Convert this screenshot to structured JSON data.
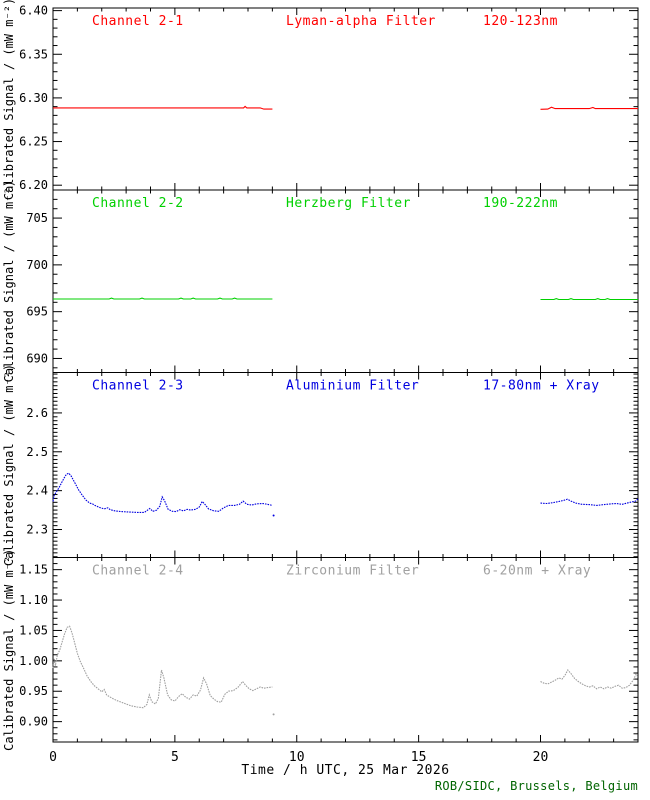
{
  "chart_data": {
    "type": "line",
    "xlabel": "Time / h UTC, 25 Mar 2026",
    "footer": "ROB/SIDC, Brussels, Belgium",
    "ylabel": "Calibrated Signal / (mW m⁻²)",
    "xlim": [
      0,
      24
    ],
    "xticks": [
      0,
      5,
      10,
      15,
      20
    ],
    "xtick_labels": [
      "0",
      "5",
      "10",
      "15",
      "20"
    ],
    "x_minor_step": 1,
    "grid": false,
    "legend": "none",
    "panels": [
      {
        "channel": "Channel 2-1",
        "filter": "Lyman-alpha Filter",
        "range": "120-123nm",
        "color": "#ff0000",
        "line_style": "solid",
        "ylim": [
          6.1945,
          6.403
        ],
        "yticks": [
          "6.20",
          "6.25",
          "6.30",
          "6.35",
          "6.40"
        ],
        "y_minor_step": 0.01,
        "segments": [
          [
            [
              0,
              6.2885
            ],
            [
              1,
              6.2885
            ],
            [
              2,
              6.2885
            ],
            [
              3,
              6.2885
            ],
            [
              4,
              6.2885
            ],
            [
              5,
              6.2885
            ],
            [
              6,
              6.2885
            ],
            [
              7,
              6.2885
            ],
            [
              7.7,
              6.2885
            ],
            [
              7.82,
              6.2885
            ],
            [
              7.88,
              6.2903
            ],
            [
              7.95,
              6.2885
            ],
            [
              8.5,
              6.2885
            ],
            [
              8.65,
              6.2872
            ],
            [
              9.0,
              6.2872
            ]
          ],
          [
            [
              20.0,
              6.287
            ],
            [
              20.3,
              6.2872
            ],
            [
              20.45,
              6.2893
            ],
            [
              20.6,
              6.2878
            ],
            [
              21.2,
              6.2878
            ],
            [
              22.0,
              6.2878
            ],
            [
              22.15,
              6.289
            ],
            [
              22.25,
              6.2878
            ],
            [
              23.0,
              6.2878
            ],
            [
              24,
              6.2878
            ]
          ]
        ],
        "outliers": []
      },
      {
        "channel": "Channel 2-2",
        "filter": "Herzberg Filter",
        "range": "190-222nm",
        "color": "#00d000",
        "line_style": "solid",
        "ylim": [
          688.5,
          708.0
        ],
        "yticks": [
          "690",
          "695",
          "700",
          "705"
        ],
        "y_minor_step": 1,
        "segments": [
          [
            [
              0,
              696.35
            ],
            [
              2.3,
              696.35
            ],
            [
              2.4,
              696.45
            ],
            [
              2.5,
              696.35
            ],
            [
              3.55,
              696.35
            ],
            [
              3.65,
              696.45
            ],
            [
              3.75,
              696.35
            ],
            [
              5.15,
              696.35
            ],
            [
              5.25,
              696.45
            ],
            [
              5.35,
              696.35
            ],
            [
              5.65,
              696.35
            ],
            [
              5.75,
              696.45
            ],
            [
              5.85,
              696.35
            ],
            [
              6.75,
              696.35
            ],
            [
              6.85,
              696.45
            ],
            [
              6.95,
              696.35
            ],
            [
              7.35,
              696.35
            ],
            [
              7.45,
              696.45
            ],
            [
              7.55,
              696.35
            ],
            [
              9.0,
              696.35
            ]
          ],
          [
            [
              20.0,
              696.3
            ],
            [
              20.55,
              696.3
            ],
            [
              20.65,
              696.4
            ],
            [
              20.75,
              696.3
            ],
            [
              21.15,
              696.3
            ],
            [
              21.25,
              696.4
            ],
            [
              21.35,
              696.3
            ],
            [
              22.25,
              696.3
            ],
            [
              22.35,
              696.4
            ],
            [
              22.45,
              696.3
            ],
            [
              22.65,
              696.3
            ],
            [
              22.75,
              696.4
            ],
            [
              22.85,
              696.3
            ],
            [
              24,
              696.3
            ]
          ]
        ],
        "outliers": []
      },
      {
        "channel": "Channel 2-3",
        "filter": "Aluminium Filter",
        "range": "17-80nm + Xray",
        "color": "#0000e0",
        "line_style": "dotted",
        "ylim": [
          2.228,
          2.704
        ],
        "yticks": [
          "2.3",
          "2.4",
          "2.5",
          "2.6"
        ],
        "y_minor_step": 0.01,
        "segments": [
          [
            [
              0,
              2.372
            ],
            [
              0.05,
              2.388
            ],
            [
              0.15,
              2.398
            ],
            [
              0.25,
              2.408
            ],
            [
              0.35,
              2.42
            ],
            [
              0.45,
              2.432
            ],
            [
              0.55,
              2.442
            ],
            [
              0.65,
              2.445
            ],
            [
              0.75,
              2.437
            ],
            [
              0.9,
              2.42
            ],
            [
              1.05,
              2.402
            ],
            [
              1.2,
              2.388
            ],
            [
              1.35,
              2.376
            ],
            [
              1.5,
              2.368
            ],
            [
              1.62,
              2.366
            ],
            [
              1.72,
              2.362
            ],
            [
              1.9,
              2.357
            ],
            [
              2.1,
              2.353
            ],
            [
              2.25,
              2.356
            ],
            [
              2.35,
              2.351
            ],
            [
              2.55,
              2.348
            ],
            [
              2.8,
              2.346
            ],
            [
              3.1,
              2.345
            ],
            [
              3.45,
              2.344
            ],
            [
              3.75,
              2.344
            ],
            [
              3.88,
              2.35
            ],
            [
              3.97,
              2.354
            ],
            [
              4.1,
              2.347
            ],
            [
              4.25,
              2.35
            ],
            [
              4.38,
              2.36
            ],
            [
              4.48,
              2.384
            ],
            [
              4.58,
              2.374
            ],
            [
              4.72,
              2.352
            ],
            [
              4.9,
              2.347
            ],
            [
              5.05,
              2.346
            ],
            [
              5.2,
              2.351
            ],
            [
              5.35,
              2.348
            ],
            [
              5.5,
              2.352
            ],
            [
              5.65,
              2.35
            ],
            [
              5.85,
              2.352
            ],
            [
              6.0,
              2.358
            ],
            [
              6.12,
              2.372
            ],
            [
              6.22,
              2.366
            ],
            [
              6.38,
              2.353
            ],
            [
              6.6,
              2.348
            ],
            [
              6.8,
              2.347
            ],
            [
              7.0,
              2.356
            ],
            [
              7.2,
              2.362
            ],
            [
              7.45,
              2.362
            ],
            [
              7.65,
              2.365
            ],
            [
              7.8,
              2.373
            ],
            [
              7.95,
              2.365
            ],
            [
              8.15,
              2.363
            ],
            [
              8.35,
              2.366
            ],
            [
              8.6,
              2.367
            ],
            [
              8.8,
              2.365
            ],
            [
              9.0,
              2.362
            ]
          ],
          [
            [
              20.0,
              2.368
            ],
            [
              20.25,
              2.367
            ],
            [
              20.5,
              2.369
            ],
            [
              20.75,
              2.372
            ],
            [
              20.95,
              2.375
            ],
            [
              21.1,
              2.378
            ],
            [
              21.25,
              2.373
            ],
            [
              21.45,
              2.368
            ],
            [
              21.7,
              2.365
            ],
            [
              22.0,
              2.364
            ],
            [
              22.3,
              2.362
            ],
            [
              22.6,
              2.364
            ],
            [
              22.9,
              2.366
            ],
            [
              23.1,
              2.367
            ],
            [
              23.35,
              2.365
            ],
            [
              23.55,
              2.368
            ],
            [
              23.75,
              2.371
            ],
            [
              23.9,
              2.373
            ],
            [
              24,
              2.379
            ]
          ]
        ],
        "outliers": [
          [
            9.05,
            2.336
          ]
        ]
      },
      {
        "channel": "Channel 2-4",
        "filter": "Zirconium Filter",
        "range": "6-20nm + Xray",
        "color": "#a0a0a0",
        "line_style": "dotted",
        "ylim": [
          0.8665,
          1.17
        ],
        "yticks": [
          "0.90",
          "0.95",
          "1.00",
          "1.05",
          "1.10",
          "1.15"
        ],
        "y_minor_step": 0.01,
        "segments": [
          [
            [
              0,
              0.988
            ],
            [
              0.05,
              1.004
            ],
            [
              0.1,
              0.992
            ],
            [
              0.18,
              1.01
            ],
            [
              0.28,
              1.018
            ],
            [
              0.38,
              1.032
            ],
            [
              0.48,
              1.045
            ],
            [
              0.58,
              1.055
            ],
            [
              0.68,
              1.057
            ],
            [
              0.78,
              1.046
            ],
            [
              0.9,
              1.028
            ],
            [
              1.0,
              1.012
            ],
            [
              1.12,
              0.999
            ],
            [
              1.25,
              0.988
            ],
            [
              1.4,
              0.975
            ],
            [
              1.55,
              0.966
            ],
            [
              1.7,
              0.959
            ],
            [
              1.85,
              0.954
            ],
            [
              2.0,
              0.949
            ],
            [
              2.1,
              0.953
            ],
            [
              2.2,
              0.944
            ],
            [
              2.4,
              0.939
            ],
            [
              2.6,
              0.935
            ],
            [
              2.8,
              0.932
            ],
            [
              3.0,
              0.929
            ],
            [
              3.2,
              0.926
            ],
            [
              3.45,
              0.924
            ],
            [
              3.7,
              0.923
            ],
            [
              3.85,
              0.928
            ],
            [
              3.95,
              0.944
            ],
            [
              4.05,
              0.933
            ],
            [
              4.2,
              0.929
            ],
            [
              4.32,
              0.938
            ],
            [
              4.45,
              0.985
            ],
            [
              4.55,
              0.972
            ],
            [
              4.7,
              0.944
            ],
            [
              4.85,
              0.936
            ],
            [
              5.0,
              0.934
            ],
            [
              5.15,
              0.941
            ],
            [
              5.3,
              0.946
            ],
            [
              5.45,
              0.94
            ],
            [
              5.6,
              0.937
            ],
            [
              5.75,
              0.944
            ],
            [
              5.9,
              0.942
            ],
            [
              6.05,
              0.952
            ],
            [
              6.18,
              0.972
            ],
            [
              6.3,
              0.962
            ],
            [
              6.45,
              0.943
            ],
            [
              6.6,
              0.937
            ],
            [
              6.75,
              0.933
            ],
            [
              6.9,
              0.932
            ],
            [
              7.05,
              0.945
            ],
            [
              7.2,
              0.95
            ],
            [
              7.4,
              0.951
            ],
            [
              7.6,
              0.957
            ],
            [
              7.78,
              0.966
            ],
            [
              7.9,
              0.96
            ],
            [
              8.05,
              0.954
            ],
            [
              8.2,
              0.951
            ],
            [
              8.35,
              0.954
            ],
            [
              8.5,
              0.957
            ],
            [
              8.65,
              0.955
            ],
            [
              8.8,
              0.956
            ],
            [
              9.0,
              0.957
            ]
          ],
          [
            [
              20.0,
              0.966
            ],
            [
              20.15,
              0.963
            ],
            [
              20.3,
              0.962
            ],
            [
              20.45,
              0.965
            ],
            [
              20.6,
              0.968
            ],
            [
              20.75,
              0.972
            ],
            [
              20.88,
              0.97
            ],
            [
              21.0,
              0.976
            ],
            [
              21.12,
              0.985
            ],
            [
              21.25,
              0.979
            ],
            [
              21.4,
              0.971
            ],
            [
              21.55,
              0.966
            ],
            [
              21.7,
              0.962
            ],
            [
              21.85,
              0.959
            ],
            [
              22.0,
              0.957
            ],
            [
              22.15,
              0.959
            ],
            [
              22.3,
              0.954
            ],
            [
              22.45,
              0.957
            ],
            [
              22.6,
              0.954
            ],
            [
              22.75,
              0.957
            ],
            [
              22.9,
              0.955
            ],
            [
              23.05,
              0.958
            ],
            [
              23.2,
              0.96
            ],
            [
              23.35,
              0.955
            ],
            [
              23.5,
              0.956
            ],
            [
              23.65,
              0.96
            ],
            [
              23.8,
              0.968
            ],
            [
              23.92,
              0.978
            ],
            [
              24,
              0.973
            ]
          ]
        ],
        "outliers": [
          [
            9.05,
            0.912
          ]
        ]
      }
    ]
  }
}
